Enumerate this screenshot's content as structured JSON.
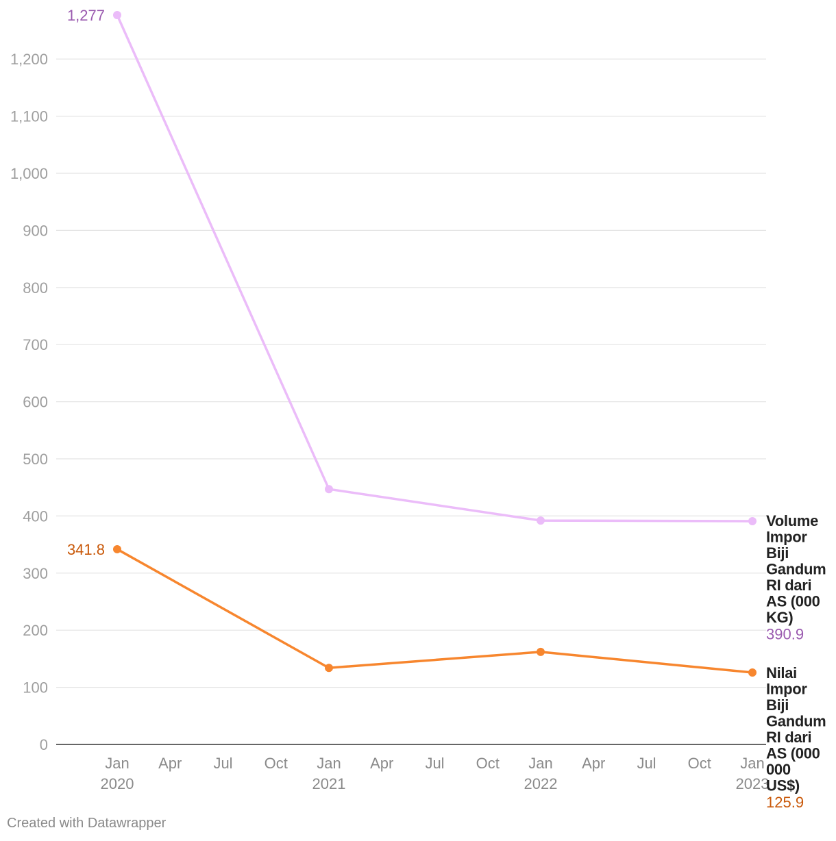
{
  "chart_data": {
    "type": "line",
    "x": [
      "Jan 2020",
      "Jan 2021",
      "Jan 2022",
      "Jan 2023"
    ],
    "x_ticks": [
      {
        "month": "Jan",
        "year": "2020"
      },
      {
        "month": "Apr",
        "year": ""
      },
      {
        "month": "Jul",
        "year": ""
      },
      {
        "month": "Oct",
        "year": ""
      },
      {
        "month": "Jan",
        "year": "2021"
      },
      {
        "month": "Apr",
        "year": ""
      },
      {
        "month": "Jul",
        "year": ""
      },
      {
        "month": "Oct",
        "year": ""
      },
      {
        "month": "Jan",
        "year": "2022"
      },
      {
        "month": "Apr",
        "year": ""
      },
      {
        "month": "Jul",
        "year": ""
      },
      {
        "month": "Oct",
        "year": ""
      },
      {
        "month": "Jan",
        "year": "2023"
      }
    ],
    "y_ticks": [
      "0",
      "100",
      "200",
      "300",
      "400",
      "500",
      "600",
      "700",
      "800",
      "900",
      "1,000",
      "1,100",
      "1,200"
    ],
    "ylim": [
      0,
      1277
    ],
    "grid": true,
    "series": [
      {
        "name": "Volume Impor Biji Gandum RI dari AS (000 KG)",
        "label_lines": [
          "Volume",
          "Impor",
          "Biji",
          "Gandum",
          "RI dari",
          "AS (000",
          "KG)"
        ],
        "values": [
          1277,
          447,
          392,
          390.9
        ],
        "first_label": "1,277",
        "last_label": "390.9",
        "color": "#ebbcf9",
        "label_color": "#9a5aaf"
      },
      {
        "name": "Nilai Impor Biji Gandum RI dari AS (000 000 US$)",
        "label_lines": [
          "Nilai",
          "Impor",
          "Biji",
          "Gandum",
          "RI dari",
          "AS (000",
          "000",
          "US$)"
        ],
        "values": [
          341.8,
          134,
          162,
          125.9
        ],
        "first_label": "341.8",
        "last_label": "125.9",
        "color": "#f7862e",
        "label_color": "#c9590a"
      }
    ]
  },
  "footer": {
    "credit": "Created with Datawrapper"
  }
}
